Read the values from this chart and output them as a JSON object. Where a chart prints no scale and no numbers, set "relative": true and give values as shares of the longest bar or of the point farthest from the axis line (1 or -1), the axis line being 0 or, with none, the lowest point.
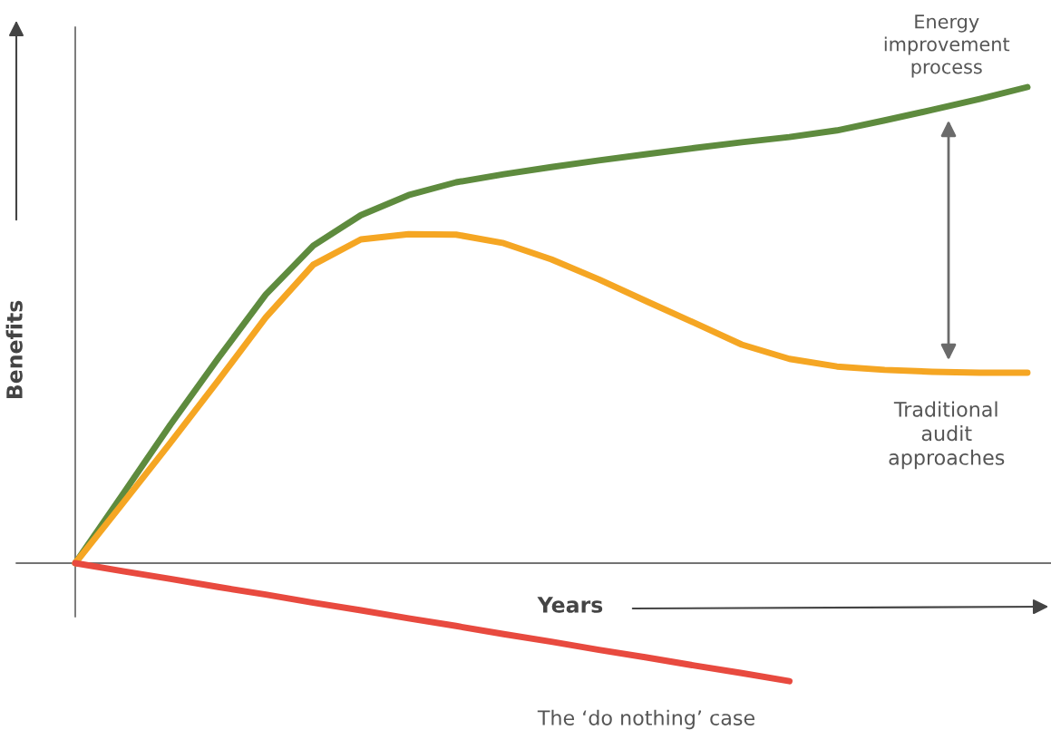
{
  "chart_data": {
    "type": "line",
    "relative": true,
    "xlabel": "Years",
    "ylabel": "Benefits",
    "legend": false,
    "marker": "none",
    "line_style": "solid",
    "categories": [
      null,
      null,
      null,
      null,
      null,
      null,
      null,
      null,
      null,
      null,
      null,
      null,
      null,
      null,
      null,
      null,
      null,
      null,
      null,
      null,
      null
    ],
    "series": [
      {
        "name": "Energy\nimprovement\nprocess",
        "color": "#5e8b3e",
        "values": [
          0,
          0.145,
          0.291,
          0.43,
          0.564,
          0.667,
          0.731,
          0.773,
          0.8,
          0.817,
          0.832,
          0.846,
          0.859,
          0.872,
          0.884,
          0.895,
          0.909,
          0.93,
          0.952,
          0.975,
          1
        ]
      },
      {
        "name": "Traditional\naudit\napproaches",
        "color": "#f5a623",
        "values": [
          0,
          0.126,
          0.253,
          0.383,
          0.516,
          0.627,
          0.68,
          0.691,
          0.69,
          0.672,
          0.638,
          0.596,
          0.55,
          0.505,
          0.459,
          0.429,
          0.413,
          0.406,
          0.402,
          0.4,
          0.4
        ]
      },
      {
        "name": "The ‘do nothing’ case",
        "color": "#e84a3f",
        "values": [
          0,
          -0.017,
          -0.033,
          -0.05,
          -0.066,
          -0.083,
          -0.099,
          -0.116,
          -0.132,
          -0.149,
          -0.165,
          -0.182,
          -0.198,
          -0.215,
          -0.231,
          -0.248,
          null,
          null,
          null,
          null,
          null
        ]
      }
    ]
  }
}
